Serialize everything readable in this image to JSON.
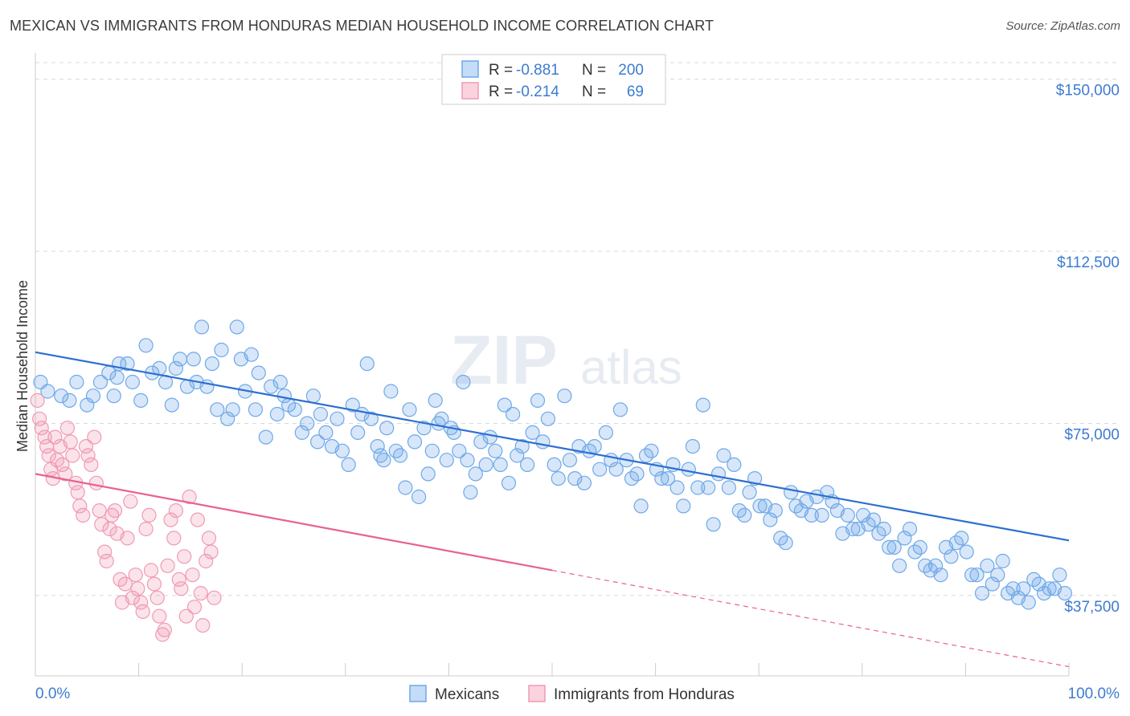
{
  "header": {
    "title": "MEXICAN VS IMMIGRANTS FROM HONDURAS MEDIAN HOUSEHOLD INCOME CORRELATION CHART",
    "source": "Source: ZipAtlas.com"
  },
  "watermark": {
    "main": "ZIP",
    "sub": "atlas"
  },
  "legend_top": {
    "rows": [
      {
        "r_label": "R =",
        "r_value": "-0.881",
        "n_label": "N =",
        "n_value": "200",
        "color": "#6fa8e8"
      },
      {
        "r_label": "R =",
        "r_value": "-0.214",
        "n_label": "N =",
        "n_value": "69",
        "color": "#f09ab5"
      }
    ]
  },
  "legend_bottom": {
    "items": [
      {
        "label": "Mexicans",
        "color": "#6fa8e8"
      },
      {
        "label": "Immigrants from Honduras",
        "color": "#f09ab5"
      }
    ]
  },
  "chart_data": {
    "type": "scatter",
    "title": "MEXICAN VS IMMIGRANTS FROM HONDURAS MEDIAN HOUSEHOLD INCOME CORRELATION CHART",
    "xlabel": "",
    "ylabel": "Median Household Income",
    "xlim": [
      0,
      100
    ],
    "ylim": [
      20000,
      155000
    ],
    "x_tick_labels": [
      "0.0%",
      "100.0%"
    ],
    "y_ticks": [
      37500,
      75000,
      112500,
      150000
    ],
    "y_tick_labels": [
      "$37,500",
      "$75,000",
      "$112,500",
      "$150,000"
    ],
    "grid": true,
    "legend_position": "top-center",
    "series": [
      {
        "name": "Mexicans",
        "color": "#6fa8e8",
        "line_color": "#2d6fd1",
        "trend": {
          "x": [
            0,
            100
          ],
          "y": [
            90500,
            49500
          ]
        },
        "points": [
          [
            0.5,
            84
          ],
          [
            1.2,
            82
          ],
          [
            2.5,
            81
          ],
          [
            3.3,
            80
          ],
          [
            4.0,
            84
          ],
          [
            5.0,
            79
          ],
          [
            5.6,
            81
          ],
          [
            6.3,
            84
          ],
          [
            7.1,
            86
          ],
          [
            7.6,
            81
          ],
          [
            7.9,
            85
          ],
          [
            8.1,
            88
          ],
          [
            8.9,
            88
          ],
          [
            9.4,
            84
          ],
          [
            10.2,
            80
          ],
          [
            10.7,
            92
          ],
          [
            11.3,
            86
          ],
          [
            12.0,
            87
          ],
          [
            12.6,
            84
          ],
          [
            13.2,
            79
          ],
          [
            13.6,
            87
          ],
          [
            14.0,
            89
          ],
          [
            14.7,
            83
          ],
          [
            15.3,
            89
          ],
          [
            15.6,
            84
          ],
          [
            16.1,
            96
          ],
          [
            16.6,
            83
          ],
          [
            17.1,
            88
          ],
          [
            17.6,
            78
          ],
          [
            18.0,
            91
          ],
          [
            18.6,
            76
          ],
          [
            19.1,
            78
          ],
          [
            19.5,
            96
          ],
          [
            19.9,
            89
          ],
          [
            20.3,
            82
          ],
          [
            20.9,
            90
          ],
          [
            21.3,
            78
          ],
          [
            21.6,
            86
          ],
          [
            22.3,
            72
          ],
          [
            22.8,
            83
          ],
          [
            23.4,
            77
          ],
          [
            23.7,
            84
          ],
          [
            24.1,
            81
          ],
          [
            24.5,
            79
          ],
          [
            25.1,
            78
          ],
          [
            25.8,
            73
          ],
          [
            26.3,
            75
          ],
          [
            26.9,
            81
          ],
          [
            27.3,
            71
          ],
          [
            27.6,
            77
          ],
          [
            28.1,
            73
          ],
          [
            28.7,
            70
          ],
          [
            29.2,
            76
          ],
          [
            29.7,
            69
          ],
          [
            30.3,
            66
          ],
          [
            30.7,
            79
          ],
          [
            31.2,
            73
          ],
          [
            31.6,
            77
          ],
          [
            32.1,
            88
          ],
          [
            32.5,
            76
          ],
          [
            33.1,
            70
          ],
          [
            33.4,
            68
          ],
          [
            33.7,
            67
          ],
          [
            34.0,
            74
          ],
          [
            34.4,
            82
          ],
          [
            34.9,
            69
          ],
          [
            35.3,
            68
          ],
          [
            35.8,
            61
          ],
          [
            36.2,
            78
          ],
          [
            36.7,
            71
          ],
          [
            37.1,
            59
          ],
          [
            37.6,
            74
          ],
          [
            38.0,
            64
          ],
          [
            38.4,
            69
          ],
          [
            38.7,
            80
          ],
          [
            39.0,
            75
          ],
          [
            39.3,
            76
          ],
          [
            39.8,
            67
          ],
          [
            40.2,
            74
          ],
          [
            40.5,
            73
          ],
          [
            41.0,
            69
          ],
          [
            41.4,
            84
          ],
          [
            41.8,
            67
          ],
          [
            42.1,
            60
          ],
          [
            42.6,
            64
          ],
          [
            43.1,
            71
          ],
          [
            43.6,
            66
          ],
          [
            44.0,
            72
          ],
          [
            44.5,
            69
          ],
          [
            45.0,
            66
          ],
          [
            45.4,
            79
          ],
          [
            45.8,
            62
          ],
          [
            46.2,
            77
          ],
          [
            46.6,
            68
          ],
          [
            47.1,
            70
          ],
          [
            47.6,
            66
          ],
          [
            48.1,
            73
          ],
          [
            48.6,
            80
          ],
          [
            49.1,
            71
          ],
          [
            49.6,
            76
          ],
          [
            50.2,
            66
          ],
          [
            50.6,
            63
          ],
          [
            51.2,
            81
          ],
          [
            51.7,
            67
          ],
          [
            52.2,
            63
          ],
          [
            52.6,
            70
          ],
          [
            53.1,
            62
          ],
          [
            53.6,
            69
          ],
          [
            54.1,
            70
          ],
          [
            54.6,
            65
          ],
          [
            55.2,
            73
          ],
          [
            55.7,
            67
          ],
          [
            56.2,
            65
          ],
          [
            56.6,
            78
          ],
          [
            57.2,
            67
          ],
          [
            57.7,
            63
          ],
          [
            58.2,
            64
          ],
          [
            58.6,
            57
          ],
          [
            59.1,
            68
          ],
          [
            59.6,
            69
          ],
          [
            60.1,
            65
          ],
          [
            60.6,
            63
          ],
          [
            61.2,
            63
          ],
          [
            61.7,
            66
          ],
          [
            62.1,
            61
          ],
          [
            62.7,
            57
          ],
          [
            63.2,
            65
          ],
          [
            63.6,
            70
          ],
          [
            64.1,
            61
          ],
          [
            64.6,
            79
          ],
          [
            65.1,
            61
          ],
          [
            65.6,
            53
          ],
          [
            66.1,
            64
          ],
          [
            66.6,
            68
          ],
          [
            67.1,
            61
          ],
          [
            67.6,
            66
          ],
          [
            68.1,
            56
          ],
          [
            68.6,
            55
          ],
          [
            69.1,
            60
          ],
          [
            69.6,
            63
          ],
          [
            70.1,
            57
          ],
          [
            70.6,
            57
          ],
          [
            71.1,
            54
          ],
          [
            71.6,
            56
          ],
          [
            72.1,
            50
          ],
          [
            72.6,
            49
          ],
          [
            73.1,
            60
          ],
          [
            73.6,
            57
          ],
          [
            74.1,
            56
          ],
          [
            74.6,
            58
          ],
          [
            75.1,
            55
          ],
          [
            75.6,
            59
          ],
          [
            76.1,
            55
          ],
          [
            76.6,
            60
          ],
          [
            77.1,
            58
          ],
          [
            77.6,
            56
          ],
          [
            78.1,
            51
          ],
          [
            78.6,
            55
          ],
          [
            79.1,
            52
          ],
          [
            79.6,
            52
          ],
          [
            80.1,
            55
          ],
          [
            80.6,
            53
          ],
          [
            81.1,
            54
          ],
          [
            81.6,
            51
          ],
          [
            82.1,
            52
          ],
          [
            82.6,
            48
          ],
          [
            83.1,
            48
          ],
          [
            83.6,
            44
          ],
          [
            84.1,
            50
          ],
          [
            84.6,
            52
          ],
          [
            85.1,
            47
          ],
          [
            85.6,
            48
          ],
          [
            86.1,
            44
          ],
          [
            86.6,
            43
          ],
          [
            87.1,
            44
          ],
          [
            87.6,
            42
          ],
          [
            88.1,
            48
          ],
          [
            88.6,
            46
          ],
          [
            89.1,
            49
          ],
          [
            89.6,
            50
          ],
          [
            90.1,
            47
          ],
          [
            90.6,
            42
          ],
          [
            91.1,
            42
          ],
          [
            91.6,
            38
          ],
          [
            92.1,
            44
          ],
          [
            92.6,
            40
          ],
          [
            93.1,
            42
          ],
          [
            93.6,
            45
          ],
          [
            94.1,
            38
          ],
          [
            94.6,
            39
          ],
          [
            95.1,
            37
          ],
          [
            95.6,
            39
          ],
          [
            96.1,
            36
          ],
          [
            96.6,
            41
          ],
          [
            97.1,
            40
          ],
          [
            97.6,
            38
          ],
          [
            98.1,
            39
          ],
          [
            98.6,
            39
          ],
          [
            99.1,
            42
          ],
          [
            99.6,
            38
          ]
        ]
      },
      {
        "name": "Immigrants from Honduras",
        "color": "#f09ab5",
        "line_color": "#e8628f",
        "trend": {
          "x": [
            0,
            50
          ],
          "y": [
            64000,
            43000
          ]
        },
        "trend_dashed": {
          "x": [
            50,
            100
          ],
          "y": [
            43000,
            22000
          ]
        },
        "points": [
          [
            0.2,
            80
          ],
          [
            0.4,
            76
          ],
          [
            0.6,
            74
          ],
          [
            0.9,
            72
          ],
          [
            1.1,
            70
          ],
          [
            1.3,
            68
          ],
          [
            1.5,
            65
          ],
          [
            1.7,
            63
          ],
          [
            1.9,
            72
          ],
          [
            2.1,
            67
          ],
          [
            2.4,
            70
          ],
          [
            2.6,
            66
          ],
          [
            2.9,
            64
          ],
          [
            3.1,
            74
          ],
          [
            3.4,
            71
          ],
          [
            3.6,
            68
          ],
          [
            3.9,
            62
          ],
          [
            4.1,
            60
          ],
          [
            4.3,
            57
          ],
          [
            4.6,
            55
          ],
          [
            4.9,
            70
          ],
          [
            5.1,
            68
          ],
          [
            5.4,
            66
          ],
          [
            5.7,
            72
          ],
          [
            5.9,
            62
          ],
          [
            6.2,
            56
          ],
          [
            6.4,
            53
          ],
          [
            6.7,
            47
          ],
          [
            6.9,
            45
          ],
          [
            7.2,
            52
          ],
          [
            7.4,
            55
          ],
          [
            7.7,
            56
          ],
          [
            7.9,
            51
          ],
          [
            8.2,
            41
          ],
          [
            8.4,
            36
          ],
          [
            8.7,
            40
          ],
          [
            8.9,
            50
          ],
          [
            9.2,
            58
          ],
          [
            9.4,
            37
          ],
          [
            9.7,
            42
          ],
          [
            9.9,
            39
          ],
          [
            10.2,
            36
          ],
          [
            10.4,
            34
          ],
          [
            10.7,
            52
          ],
          [
            11.0,
            55
          ],
          [
            11.2,
            43
          ],
          [
            11.5,
            40
          ],
          [
            11.8,
            37
          ],
          [
            12.0,
            33
          ],
          [
            12.3,
            29
          ],
          [
            12.5,
            30
          ],
          [
            12.8,
            44
          ],
          [
            13.1,
            54
          ],
          [
            13.4,
            50
          ],
          [
            13.6,
            56
          ],
          [
            13.9,
            41
          ],
          [
            14.1,
            39
          ],
          [
            14.4,
            46
          ],
          [
            14.6,
            33
          ],
          [
            14.9,
            59
          ],
          [
            15.2,
            42
          ],
          [
            15.4,
            35
          ],
          [
            15.7,
            54
          ],
          [
            16.0,
            38
          ],
          [
            16.2,
            31
          ],
          [
            16.5,
            45
          ],
          [
            16.8,
            50
          ],
          [
            17.0,
            47
          ],
          [
            17.3,
            37
          ]
        ]
      }
    ]
  }
}
